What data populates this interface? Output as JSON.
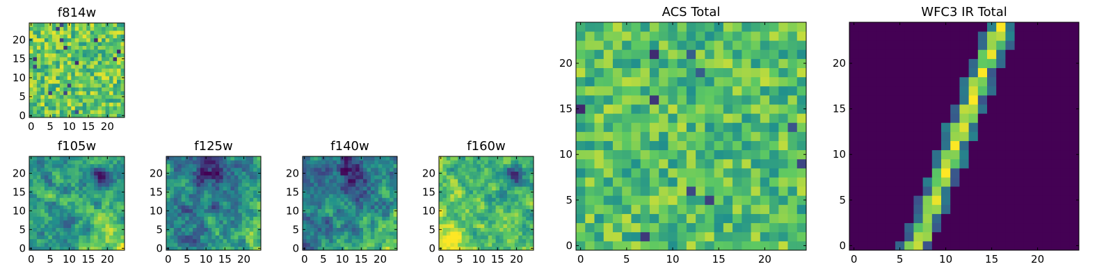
{
  "figure": {
    "colormap": "viridis"
  },
  "chart_data": [
    {
      "type": "heatmap",
      "title": "f814w",
      "grid": [
        25,
        25
      ],
      "xticks": [
        0,
        5,
        10,
        15,
        20
      ],
      "yticks": [
        0,
        5,
        10,
        15,
        20
      ],
      "xlim": [
        -0.5,
        24.5
      ],
      "ylim": [
        -0.5,
        24.5
      ],
      "value_range": [
        0,
        1
      ],
      "pattern": {
        "kind": "noise",
        "base": 0.74,
        "amp": 0.38,
        "seed": 11,
        "dark_pixels": 14
      }
    },
    {
      "type": "heatmap",
      "title": "f105w",
      "grid": [
        25,
        25
      ],
      "xticks": [
        0,
        5,
        10,
        15,
        20
      ],
      "yticks": [
        0,
        5,
        10,
        15,
        20
      ],
      "xlim": [
        -0.5,
        24.5
      ],
      "ylim": [
        -0.5,
        24.5
      ],
      "value_range": [
        0,
        1
      ],
      "pattern": {
        "kind": "smooth",
        "base": 0.55,
        "amp": 0.3,
        "seed": 21,
        "bright_corner": "bottom-right",
        "dark_spot": "top-right"
      }
    },
    {
      "type": "heatmap",
      "title": "f125w",
      "grid": [
        25,
        25
      ],
      "xticks": [
        0,
        5,
        10,
        15,
        20
      ],
      "yticks": [
        0,
        5,
        10,
        15,
        20
      ],
      "xlim": [
        -0.5,
        24.5
      ],
      "ylim": [
        -0.5,
        24.5
      ],
      "value_range": [
        0,
        1
      ],
      "pattern": {
        "kind": "smooth",
        "base": 0.45,
        "amp": 0.35,
        "seed": 33,
        "bright_corner": "bottom-right",
        "dark_spot": "top-center"
      }
    },
    {
      "type": "heatmap",
      "title": "f140w",
      "grid": [
        25,
        25
      ],
      "xticks": [
        0,
        5,
        10,
        15,
        20
      ],
      "yticks": [
        0,
        5,
        10,
        15,
        20
      ],
      "xlim": [
        -0.5,
        24.5
      ],
      "ylim": [
        -0.5,
        24.5
      ],
      "value_range": [
        0,
        1
      ],
      "pattern": {
        "kind": "smooth",
        "base": 0.45,
        "amp": 0.35,
        "seed": 47,
        "bright_corner": "bottom-right",
        "dark_spot": "top-center"
      }
    },
    {
      "type": "heatmap",
      "title": "f160w",
      "grid": [
        25,
        25
      ],
      "xticks": [
        0,
        5,
        10,
        15,
        20
      ],
      "yticks": [
        0,
        5,
        10,
        15,
        20
      ],
      "xlim": [
        -0.5,
        24.5
      ],
      "ylim": [
        -0.5,
        24.5
      ],
      "value_range": [
        0,
        1
      ],
      "pattern": {
        "kind": "smooth",
        "base": 0.68,
        "amp": 0.3,
        "seed": 59,
        "bright_corner": "bottom-left",
        "dark_spot": "top-right"
      }
    },
    {
      "type": "heatmap",
      "title": "ACS Total",
      "grid": [
        25,
        25
      ],
      "xticks": [
        0,
        5,
        10,
        15,
        20
      ],
      "yticks": [
        0,
        5,
        10,
        15,
        20
      ],
      "xlim": [
        -0.5,
        24.5
      ],
      "ylim": [
        -0.5,
        24.5
      ],
      "value_range": [
        0,
        1
      ],
      "pattern": {
        "kind": "noise",
        "base": 0.7,
        "amp": 0.35,
        "seed": 71,
        "dark_pixels": 10
      }
    },
    {
      "type": "heatmap",
      "title": "WFC3 IR Total",
      "grid": [
        25,
        25
      ],
      "xticks": [
        0,
        5,
        10,
        15,
        20
      ],
      "yticks": [
        0,
        5,
        10,
        15,
        20
      ],
      "xlim": [
        -0.5,
        24.5
      ],
      "ylim": [
        -0.5,
        24.5
      ],
      "value_range": [
        0,
        1
      ],
      "pattern": {
        "kind": "streak",
        "x_at_y0": 6.8,
        "x_at_y24": 16.0,
        "width": 0.9
      }
    }
  ]
}
